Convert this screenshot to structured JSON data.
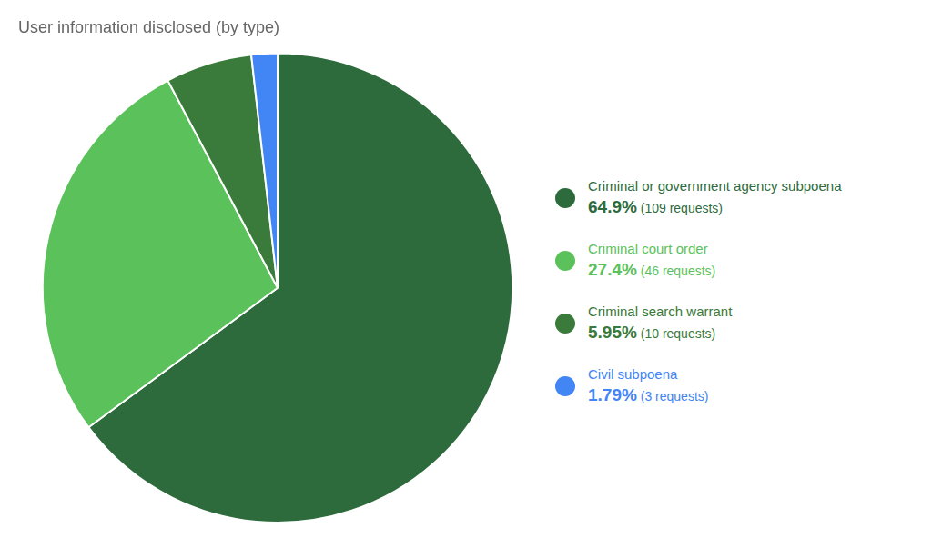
{
  "chart_data": {
    "type": "pie",
    "title": "User information disclosed (by type)",
    "categories": [
      "Criminal or government agency subpoena",
      "Criminal court order",
      "Criminal search warrant",
      "Civil subpoena"
    ],
    "values": [
      64.9,
      27.4,
      5.95,
      1.79
    ],
    "value_labels": [
      "64.9%",
      "27.4%",
      "5.95%",
      "1.79%"
    ],
    "requests": [
      109,
      46,
      10,
      3
    ],
    "request_labels": [
      "(109 requests)",
      "(46 requests)",
      "(10 requests)",
      "(3 requests)"
    ],
    "colors": [
      "#2d6b3c",
      "#5bc25b",
      "#3a7a3a",
      "#4285f4"
    ]
  }
}
